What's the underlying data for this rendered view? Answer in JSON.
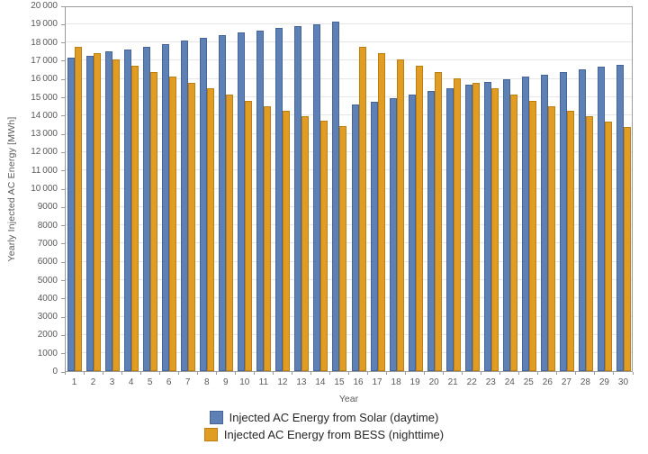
{
  "colors": {
    "solar": "#5E81B5",
    "solar_edge": "#47639B",
    "bess": "#E19C24",
    "bess_edge": "#BC7F12",
    "gridline": "#E6E6E6",
    "frame": "#9B9B9B",
    "tick": "#9B9B9B",
    "tick_label": "#5A5A5A",
    "legend_text": "#262626",
    "background": "#FFFFFF"
  },
  "axes": {
    "x_label": "Year",
    "y_label": "Yearly Injected AC Energy [MWh]",
    "x_tick_labels": [
      "1",
      "2",
      "3",
      "4",
      "5",
      "6",
      "7",
      "8",
      "9",
      "10",
      "11",
      "12",
      "13",
      "14",
      "15",
      "16",
      "17",
      "18",
      "19",
      "20",
      "21",
      "22",
      "23",
      "24",
      "25",
      "26",
      "27",
      "28",
      "29",
      "30"
    ],
    "y_tick_labels": [
      "0",
      "1000",
      "2000",
      "3000",
      "4000",
      "5000",
      "6000",
      "7000",
      "8000",
      "9000",
      "10 000",
      "11 000",
      "12 000",
      "13 000",
      "14 000",
      "15 000",
      "16 000",
      "17 000",
      "18 000",
      "19 000",
      "20 000"
    ]
  },
  "chart_data": {
    "type": "bar",
    "title": "",
    "xlabel": "Year",
    "ylabel": "Yearly Injected AC Energy [MWh]",
    "ylim": [
      0,
      20000
    ],
    "y_tick_step": 1000,
    "grid": true,
    "legend_position": "bottom",
    "categories": [
      1,
      2,
      3,
      4,
      5,
      6,
      7,
      8,
      9,
      10,
      11,
      12,
      13,
      14,
      15,
      16,
      17,
      18,
      19,
      20,
      21,
      22,
      23,
      24,
      25,
      26,
      27,
      28,
      29,
      30
    ],
    "series": [
      {
        "name": "Injected AC Energy from Solar (daytime)",
        "color": "#5E81B5",
        "values": [
          17150,
          17250,
          17500,
          17600,
          17750,
          17900,
          18100,
          18250,
          18350,
          18500,
          18600,
          18750,
          18850,
          18950,
          19100,
          14600,
          14750,
          14950,
          15100,
          15300,
          15450,
          15650,
          15800,
          15950,
          16100,
          16200,
          16350,
          16500,
          16650,
          16750
        ]
      },
      {
        "name": "Injected AC Energy from BESS (nighttime)",
        "color": "#E19C24",
        "values": [
          17750,
          17400,
          17050,
          16700,
          16350,
          16100,
          15750,
          15450,
          15100,
          14800,
          14500,
          14250,
          13950,
          13700,
          13400,
          17750,
          17400,
          17050,
          16700,
          16350,
          16000,
          15750,
          15450,
          15100,
          14800,
          14500,
          14250,
          13950,
          13650,
          13350
        ]
      }
    ]
  }
}
